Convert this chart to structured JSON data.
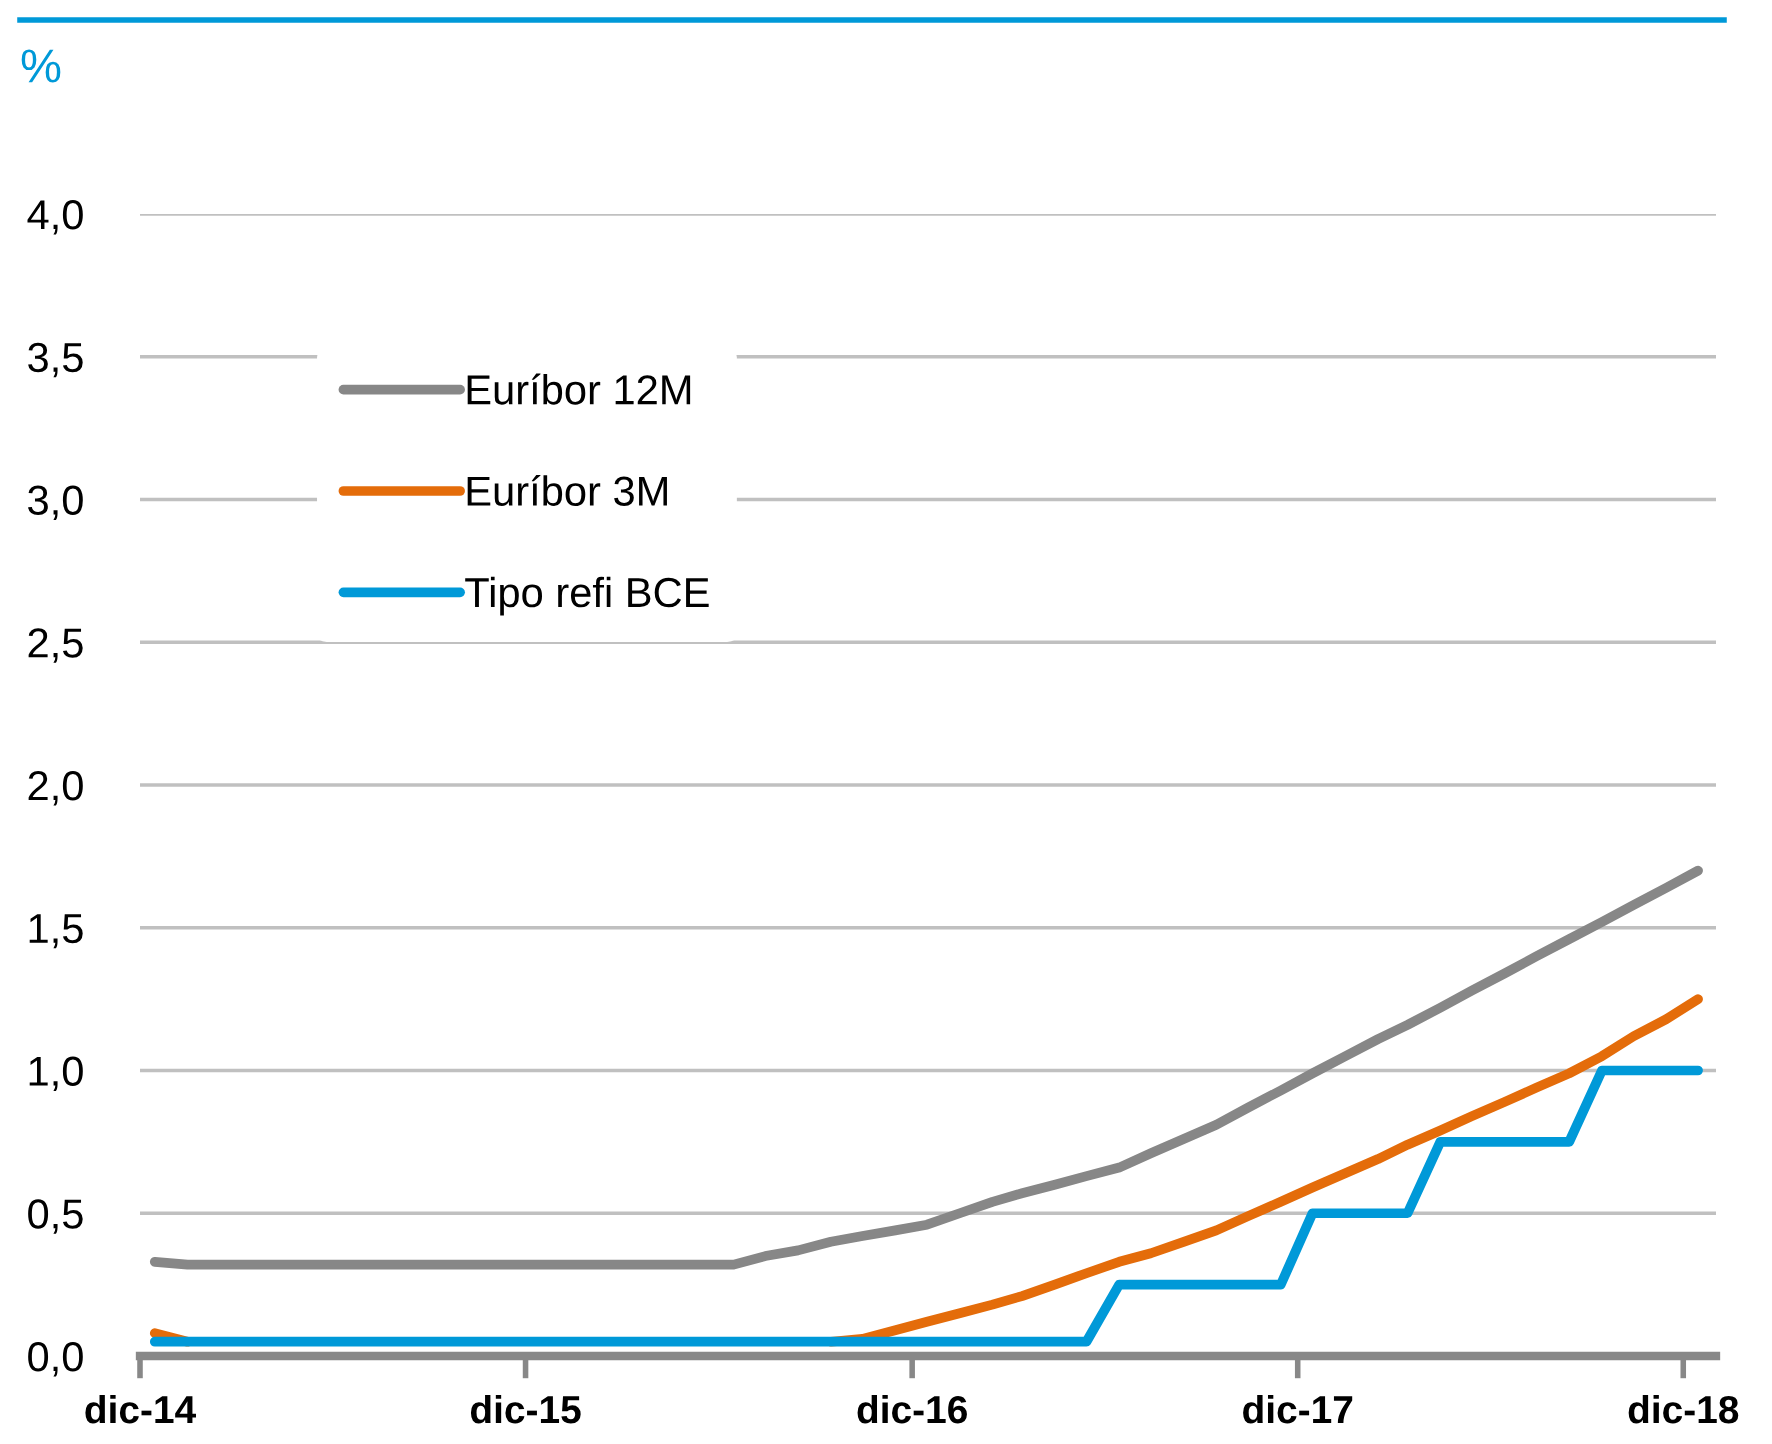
{
  "chart_data": {
    "type": "line",
    "title": "%",
    "x": [
      "2014-12-15",
      "2015-01-15",
      "2015-02-15",
      "2015-03-15",
      "2015-04-15",
      "2015-05-15",
      "2015-06-15",
      "2015-07-15",
      "2015-08-15",
      "2015-09-15",
      "2015-10-15",
      "2015-11-15",
      "2015-12-15",
      "2016-01-15",
      "2016-02-15",
      "2016-03-15",
      "2016-04-15",
      "2016-05-15",
      "2016-06-15",
      "2016-07-15",
      "2016-08-15",
      "2016-09-15",
      "2016-10-15",
      "2016-11-15",
      "2016-12-15",
      "2017-01-15",
      "2017-02-15",
      "2017-03-15",
      "2017-04-15",
      "2017-05-15",
      "2017-06-15",
      "2017-07-15",
      "2017-08-15",
      "2017-09-15",
      "2017-10-15",
      "2017-11-15",
      "2017-12-15",
      "2018-01-15",
      "2018-02-15",
      "2018-03-15",
      "2018-04-15",
      "2018-05-15",
      "2018-06-15",
      "2018-07-15",
      "2018-08-15",
      "2018-09-15",
      "2018-10-15",
      "2018-11-15",
      "2018-12-15"
    ],
    "series": [
      {
        "name": "Euríbor 12M",
        "color": "#878787",
        "values": [
          0.33,
          0.32,
          0.32,
          0.32,
          0.32,
          0.32,
          0.32,
          0.32,
          0.32,
          0.32,
          0.32,
          0.32,
          0.32,
          0.32,
          0.32,
          0.32,
          0.32,
          0.32,
          0.32,
          0.35,
          0.37,
          0.4,
          0.42,
          0.44,
          0.46,
          0.5,
          0.54,
          0.57,
          0.6,
          0.63,
          0.66,
          0.71,
          0.76,
          0.81,
          0.87,
          0.93,
          0.99,
          1.05,
          1.11,
          1.16,
          1.22,
          1.28,
          1.34,
          1.4,
          1.46,
          1.52,
          1.58,
          1.64,
          1.7
        ]
      },
      {
        "name": "Euríbor 3M",
        "color": "#e46c0a",
        "values": [
          0.08,
          0.05,
          null,
          null,
          null,
          null,
          null,
          null,
          null,
          null,
          null,
          null,
          null,
          null,
          null,
          null,
          null,
          null,
          null,
          null,
          null,
          0.05,
          0.06,
          0.09,
          0.12,
          0.15,
          0.18,
          0.21,
          0.25,
          0.29,
          0.33,
          0.36,
          0.4,
          0.44,
          0.49,
          0.54,
          0.59,
          0.64,
          0.69,
          0.74,
          0.79,
          0.84,
          0.89,
          0.94,
          0.99,
          1.05,
          1.12,
          1.18,
          1.25
        ]
      },
      {
        "name": "Tipo refi BCE",
        "color": "#0099d8",
        "values": [
          0.05,
          0.05,
          0.05,
          0.05,
          0.05,
          0.05,
          0.05,
          0.05,
          0.05,
          0.05,
          0.05,
          0.05,
          0.05,
          0.05,
          0.05,
          0.05,
          0.05,
          0.05,
          0.05,
          0.05,
          0.05,
          0.05,
          0.05,
          0.05,
          0.05,
          0.05,
          0.05,
          0.05,
          0.05,
          0.05,
          0.25,
          0.25,
          0.25,
          0.25,
          0.25,
          0.25,
          0.5,
          0.5,
          0.5,
          0.5,
          0.75,
          0.75,
          0.75,
          0.75,
          0.75,
          1.0,
          1.0,
          1.0,
          1.0
        ]
      }
    ],
    "xlim": [
      "2014-12-01",
      "2019-01-01"
    ],
    "xticks": [
      {
        "value": "2014-12-01",
        "label": "dic-14"
      },
      {
        "value": "2015-12-01",
        "label": "dic-15"
      },
      {
        "value": "2016-12-01",
        "label": "dic-16"
      },
      {
        "value": "2017-12-01",
        "label": "dic-17"
      },
      {
        "value": "2018-12-01",
        "label": "dic-18"
      }
    ],
    "ylim": [
      0,
      4
    ],
    "yticks": [
      {
        "value": 0,
        "label": "0,0"
      },
      {
        "value": 0.5,
        "label": "0,5"
      },
      {
        "value": 1,
        "label": "1,0"
      },
      {
        "value": 1.5,
        "label": "1,5"
      },
      {
        "value": 2,
        "label": "2,0"
      },
      {
        "value": 2.5,
        "label": "2,5"
      },
      {
        "value": 3,
        "label": "3,0"
      },
      {
        "value": 3.5,
        "label": "3,5"
      },
      {
        "value": 4,
        "label": "4,0"
      }
    ],
    "grid": "y",
    "legend": "top left",
    "marker": "none",
    "line_style": "solid"
  }
}
